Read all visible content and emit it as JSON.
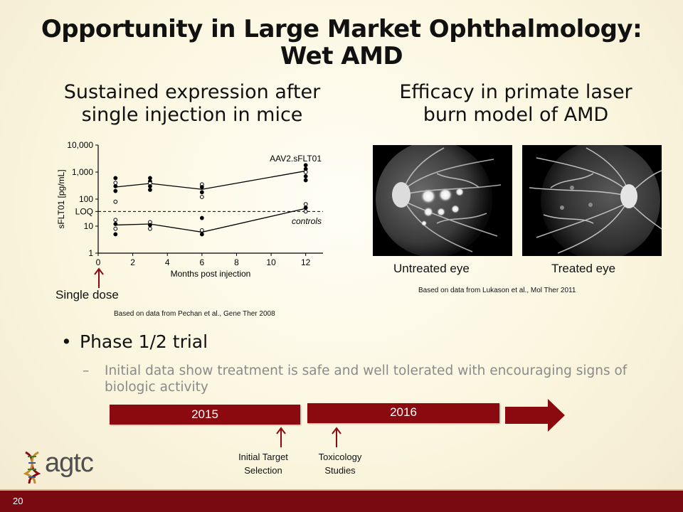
{
  "slide": {
    "title_line1": "Opportunity in Large Market Ophthalmology:",
    "title_line2": "Wet AMD",
    "left_heading_line1": "Sustained expression after",
    "left_heading_line2": "single injection in mice",
    "right_heading_line1": "Efficacy in primate laser",
    "right_heading_line2": "burn model of AMD",
    "single_dose_label": "Single dose",
    "left_citation": "Based on data from Pechan et al., Gene Ther 2008",
    "right_citation": "Based on data from Lukason et al., Mol Ther 2011",
    "untreated_caption": "Untreated eye",
    "treated_caption": "Treated eye",
    "bullet": "Phase 1/2 trial",
    "bullet_marker": "•",
    "subbullet_marker": "–",
    "subbullet": "Initial data show treatment is safe and well tolerated with encouraging signs of biologic activity",
    "slide_number": "20"
  },
  "timeline": {
    "year1": "2015",
    "year2": "2016",
    "marker1_line1": "Initial Target",
    "marker1_line2": "Selection",
    "marker2_line1": "Toxicology",
    "marker2_line2": "Studies"
  },
  "logo": {
    "text": "agtc",
    "icon": "dna-helix-icon"
  },
  "colors": {
    "accent": "#8b0a10",
    "footer": "#7a0a12",
    "subtext": "#8a8a8a"
  },
  "chart_data": {
    "type": "scatter",
    "xlabel": "Months post injection",
    "ylabel": "sFLT01 [pg/mL]",
    "yscale": "log",
    "xlim": [
      0,
      13
    ],
    "ylim": [
      1,
      10000
    ],
    "x_ticks": [
      "0",
      "2",
      "4",
      "6",
      "8",
      "10",
      "12"
    ],
    "y_ticks": [
      "10,000",
      "1,000",
      "100",
      "LOQ",
      "10",
      "1"
    ],
    "loq_value": 35,
    "annotations": [
      "AAV2.sFLT01",
      "controls"
    ],
    "series": [
      {
        "name": "AAV2.sFLT01",
        "mean_line": [
          [
            1,
            280
          ],
          [
            3,
            380
          ],
          [
            6,
            230
          ],
          [
            12,
            1100
          ]
        ],
        "points": [
          [
            1,
            600
          ],
          [
            1,
            400
          ],
          [
            1,
            300
          ],
          [
            1,
            200
          ],
          [
            1,
            80
          ],
          [
            3,
            600
          ],
          [
            3,
            450
          ],
          [
            3,
            380
          ],
          [
            3,
            300
          ],
          [
            3,
            220
          ],
          [
            6,
            350
          ],
          [
            6,
            280
          ],
          [
            6,
            180
          ],
          [
            6,
            120
          ],
          [
            12,
            1800
          ],
          [
            12,
            1300
          ],
          [
            12,
            1000
          ],
          [
            12,
            700
          ],
          [
            12,
            500
          ]
        ]
      },
      {
        "name": "controls",
        "mean_line": [
          [
            1,
            11
          ],
          [
            3,
            12
          ],
          [
            6,
            6
          ],
          [
            12,
            45
          ]
        ],
        "points": [
          [
            1,
            17
          ],
          [
            1,
            12
          ],
          [
            1,
            8
          ],
          [
            1,
            5
          ],
          [
            3,
            14
          ],
          [
            3,
            11
          ],
          [
            3,
            8
          ],
          [
            6,
            20
          ],
          [
            6,
            7
          ],
          [
            6,
            5
          ],
          [
            12,
            65
          ],
          [
            12,
            48
          ],
          [
            12,
            35
          ]
        ]
      }
    ]
  }
}
